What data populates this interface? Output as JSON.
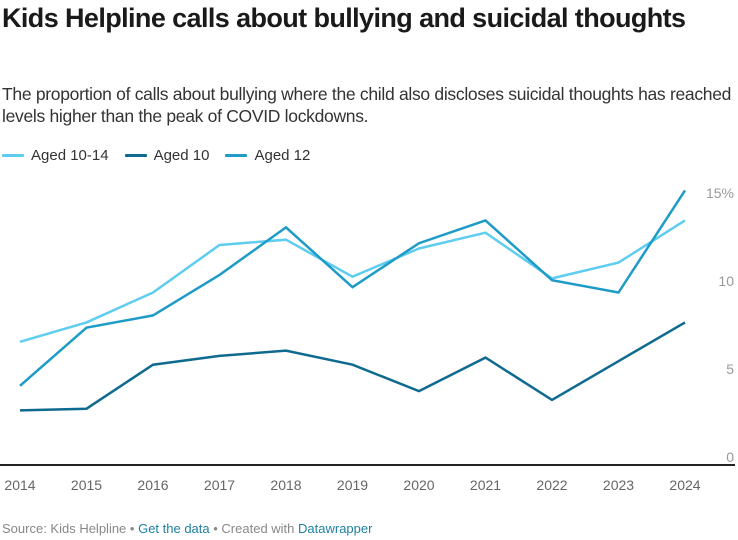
{
  "header": {
    "title": "Kids Helpline calls about bullying and suicidal thoughts",
    "subtitle": "The proportion of calls about bullying where the child also discloses suicidal thoughts has reached levels higher than the peak of COVID lockdowns."
  },
  "legend": [
    {
      "label": "Aged 10-14",
      "color": "#5fcdf0"
    },
    {
      "label": "Aged 10",
      "color": "#0f6a8f"
    },
    {
      "label": "Aged 12",
      "color": "#1e9bc6"
    }
  ],
  "footer": {
    "source": "Source: Kids Helpline",
    "sep1": " • ",
    "get_data": "Get the data",
    "sep2": " • ",
    "created_with": "Created with ",
    "datawrapper": "Datawrapper"
  },
  "chart_data": {
    "type": "line",
    "title": "Kids Helpline calls about bullying and suicidal thoughts",
    "xlabel": "",
    "ylabel": "",
    "x": [
      2014,
      2015,
      2016,
      2017,
      2018,
      2019,
      2020,
      2021,
      2022,
      2023,
      2024
    ],
    "ylim": [
      0,
      15
    ],
    "y_ticks": [
      0,
      5,
      10,
      15
    ],
    "y_tick_labels": [
      "0",
      "5",
      "10",
      "15%"
    ],
    "x_tick_labels": [
      "2014",
      "2015",
      "2016",
      "2017",
      "2018",
      "2019",
      "2020",
      "2021",
      "2022",
      "2023",
      "2024"
    ],
    "grid": false,
    "legend_position": "top-left",
    "series": [
      {
        "name": "Aged 10-14",
        "color": "#5fcdf0",
        "values": [
          7.0,
          8.1,
          9.8,
          12.5,
          12.8,
          10.7,
          12.3,
          13.2,
          10.6,
          11.5,
          13.9
        ]
      },
      {
        "name": "Aged 10",
        "color": "#0f6a8f",
        "values": [
          3.1,
          3.2,
          5.7,
          6.2,
          6.5,
          5.7,
          4.2,
          6.1,
          3.7,
          5.9,
          8.1
        ]
      },
      {
        "name": "Aged 12",
        "color": "#1e9bc6",
        "values": [
          4.5,
          7.8,
          8.5,
          10.8,
          13.5,
          10.1,
          12.6,
          13.9,
          10.5,
          9.8,
          15.6
        ]
      }
    ]
  }
}
